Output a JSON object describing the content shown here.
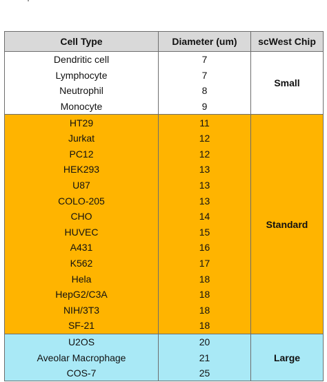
{
  "headers": [
    "Cell Type",
    "Diameter (um)",
    "scWest Chip"
  ],
  "groups": [
    {
      "chip": "Small",
      "color": "#ffffff",
      "rows": [
        {
          "cell": "Dendritic cell",
          "diameter": "7"
        },
        {
          "cell": "Lymphocyte",
          "diameter": "7"
        },
        {
          "cell": "Neutrophil",
          "diameter": "8"
        },
        {
          "cell": "Monocyte",
          "diameter": "9"
        }
      ]
    },
    {
      "chip": "Standard",
      "color": "#ffb400",
      "rows": [
        {
          "cell": "HT29",
          "diameter": "11"
        },
        {
          "cell": "Jurkat",
          "diameter": "12"
        },
        {
          "cell": "PC12",
          "diameter": "12"
        },
        {
          "cell": "HEK293",
          "diameter": "13"
        },
        {
          "cell": "U87",
          "diameter": "13"
        },
        {
          "cell": "COLO-205",
          "diameter": "13"
        },
        {
          "cell": "CHO",
          "diameter": "14"
        },
        {
          "cell": "HUVEC",
          "diameter": "15"
        },
        {
          "cell": "A431",
          "diameter": "16"
        },
        {
          "cell": "K562",
          "diameter": "17"
        },
        {
          "cell": "Hela",
          "diameter": "18"
        },
        {
          "cell": "HepG2/C3A",
          "diameter": "18"
        },
        {
          "cell": "NIH/3T3",
          "diameter": "18"
        },
        {
          "cell": "SF-21",
          "diameter": "18"
        }
      ]
    },
    {
      "chip": "Large",
      "color": "#a9e9f6",
      "rows": [
        {
          "cell": "U2OS",
          "diameter": "20"
        },
        {
          "cell": "Aveolar Macrophage",
          "diameter": "21"
        },
        {
          "cell": "COS-7",
          "diameter": "25"
        }
      ]
    }
  ]
}
